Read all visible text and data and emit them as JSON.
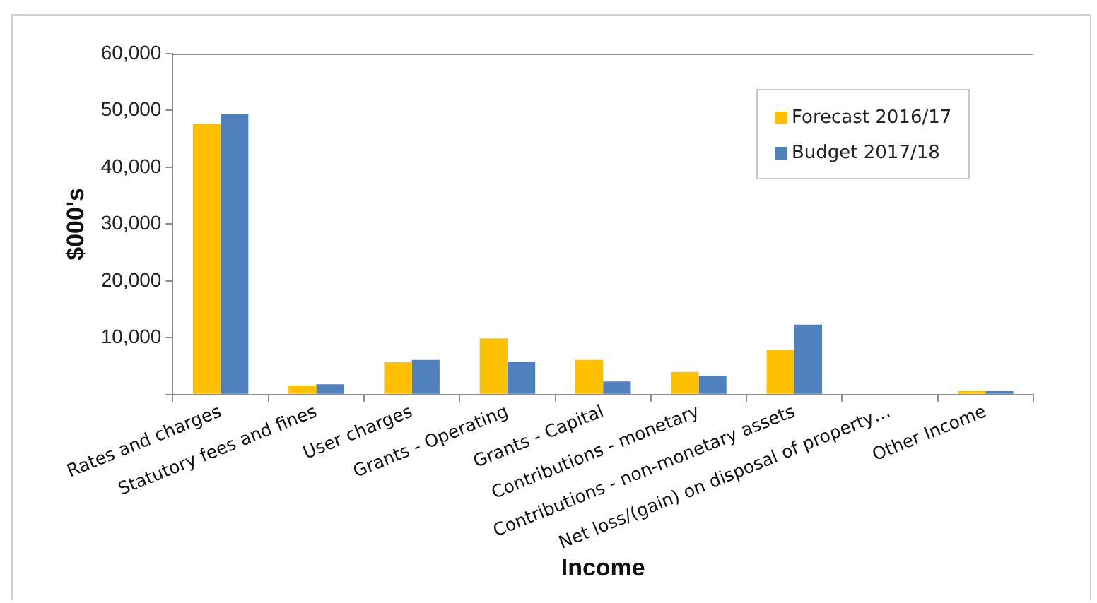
{
  "chart_data": {
    "type": "bar",
    "xlabel": "Income",
    "ylabel": "$000's",
    "categories": [
      "Rates and charges",
      "Statutory fees and fines",
      "User charges",
      "Grants - Operating",
      "Grants - Capital",
      "Contributions - monetary",
      "Contributions - non-monetary assets",
      "Net loss/(gain) on disposal of property…",
      "Other Income"
    ],
    "series": [
      {
        "name": "Forecast 2016/17",
        "color": "#ffc000",
        "values": [
          47700,
          1600,
          5700,
          9900,
          6100,
          4000,
          7800,
          0,
          600
        ]
      },
      {
        "name": "Budget 2017/18",
        "color": "#4f81bd",
        "values": [
          49300,
          1800,
          6100,
          5800,
          2300,
          3300,
          12300,
          0,
          600
        ]
      }
    ],
    "ylim": [
      0,
      60000
    ],
    "yticks": [
      {
        "value": 0,
        "label": null
      },
      {
        "value": 10000,
        "label": "10,000"
      },
      {
        "value": 20000,
        "label": "20,000"
      },
      {
        "value": 30000,
        "label": "30,000"
      },
      {
        "value": 40000,
        "label": "40,000"
      },
      {
        "value": 50000,
        "label": "50,000"
      },
      {
        "value": 60000,
        "label": "60,000"
      }
    ],
    "grid": false,
    "legend": "top right"
  }
}
